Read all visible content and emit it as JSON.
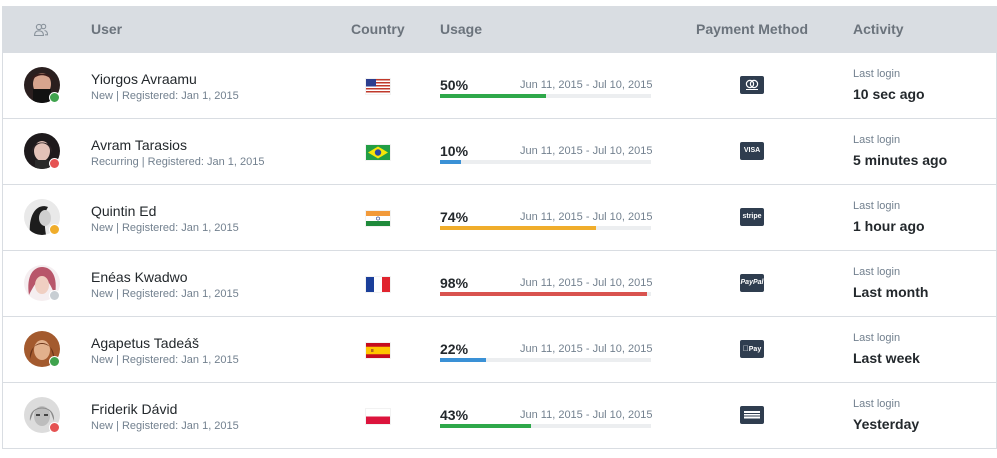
{
  "header": {
    "user_icon": "users-icon",
    "user": "User",
    "country": "Country",
    "usage": "Usage",
    "payment": "Payment Method",
    "activity": "Activity"
  },
  "colors": {
    "online": "#4dbd74",
    "busy": "#f86c6b",
    "away": "#ffc107",
    "offline": "#c8ced3",
    "bar_green": "#4dbd74",
    "bar_blue": "#20a8d8",
    "bar_yellow": "#ffc107",
    "bar_red": "#f86c6b"
  },
  "rows": [
    {
      "name": "Yiorgos Avraamu",
      "sub": "New | Registered: Jan 1, 2015",
      "status": "online",
      "country": "US",
      "usage_pct": "50%",
      "usage_value": 50,
      "bar_color": "#2ea84a",
      "period": "Jun 11, 2015 - Jul 10, 2015",
      "payment_icon": "mastercard-icon",
      "payment_text": "",
      "activity_label": "Last login",
      "activity_value": "10 sec ago"
    },
    {
      "name": "Avram Tarasios",
      "sub": "Recurring | Registered: Jan 1, 2015",
      "status": "busy",
      "country": "BR",
      "usage_pct": "10%",
      "usage_value": 10,
      "bar_color": "#3a91d6",
      "period": "Jun 11, 2015 - Jul 10, 2015",
      "payment_icon": "visa-icon",
      "payment_text": "VISA",
      "activity_label": "Last login",
      "activity_value": "5 minutes ago"
    },
    {
      "name": "Quintin Ed",
      "sub": "New | Registered: Jan 1, 2015",
      "status": "away",
      "country": "IN",
      "usage_pct": "74%",
      "usage_value": 74,
      "bar_color": "#f0ad2b",
      "period": "Jun 11, 2015 - Jul 10, 2015",
      "payment_icon": "stripe-icon",
      "payment_text": "stripe",
      "activity_label": "Last login",
      "activity_value": "1 hour ago"
    },
    {
      "name": "Enéas Kwadwo",
      "sub": "New | Registered: Jan 1, 2015",
      "status": "offline",
      "country": "FR",
      "usage_pct": "98%",
      "usage_value": 98,
      "bar_color": "#d9534f",
      "period": "Jun 11, 2015 - Jul 10, 2015",
      "payment_icon": "paypal-icon",
      "payment_text": "PayPal",
      "activity_label": "Last login",
      "activity_value": "Last month"
    },
    {
      "name": "Agapetus Tadeáš",
      "sub": "New | Registered: Jan 1, 2015",
      "status": "online",
      "country": "ES",
      "usage_pct": "22%",
      "usage_value": 22,
      "bar_color": "#3a91d6",
      "period": "Jun 11, 2015 - Jul 10, 2015",
      "payment_icon": "apple-pay-icon",
      "payment_text": "Pay",
      "activity_label": "Last login",
      "activity_value": "Last week"
    },
    {
      "name": "Friderik Dávid",
      "sub": "New | Registered: Jan 1, 2015",
      "status": "busy",
      "country": "PL",
      "usage_pct": "43%",
      "usage_value": 43,
      "bar_color": "#2ea84a",
      "period": "Jun 11, 2015 - Jul 10, 2015",
      "payment_icon": "amex-icon",
      "payment_text": "",
      "activity_label": "Last login",
      "activity_value": "Yesterday"
    }
  ]
}
